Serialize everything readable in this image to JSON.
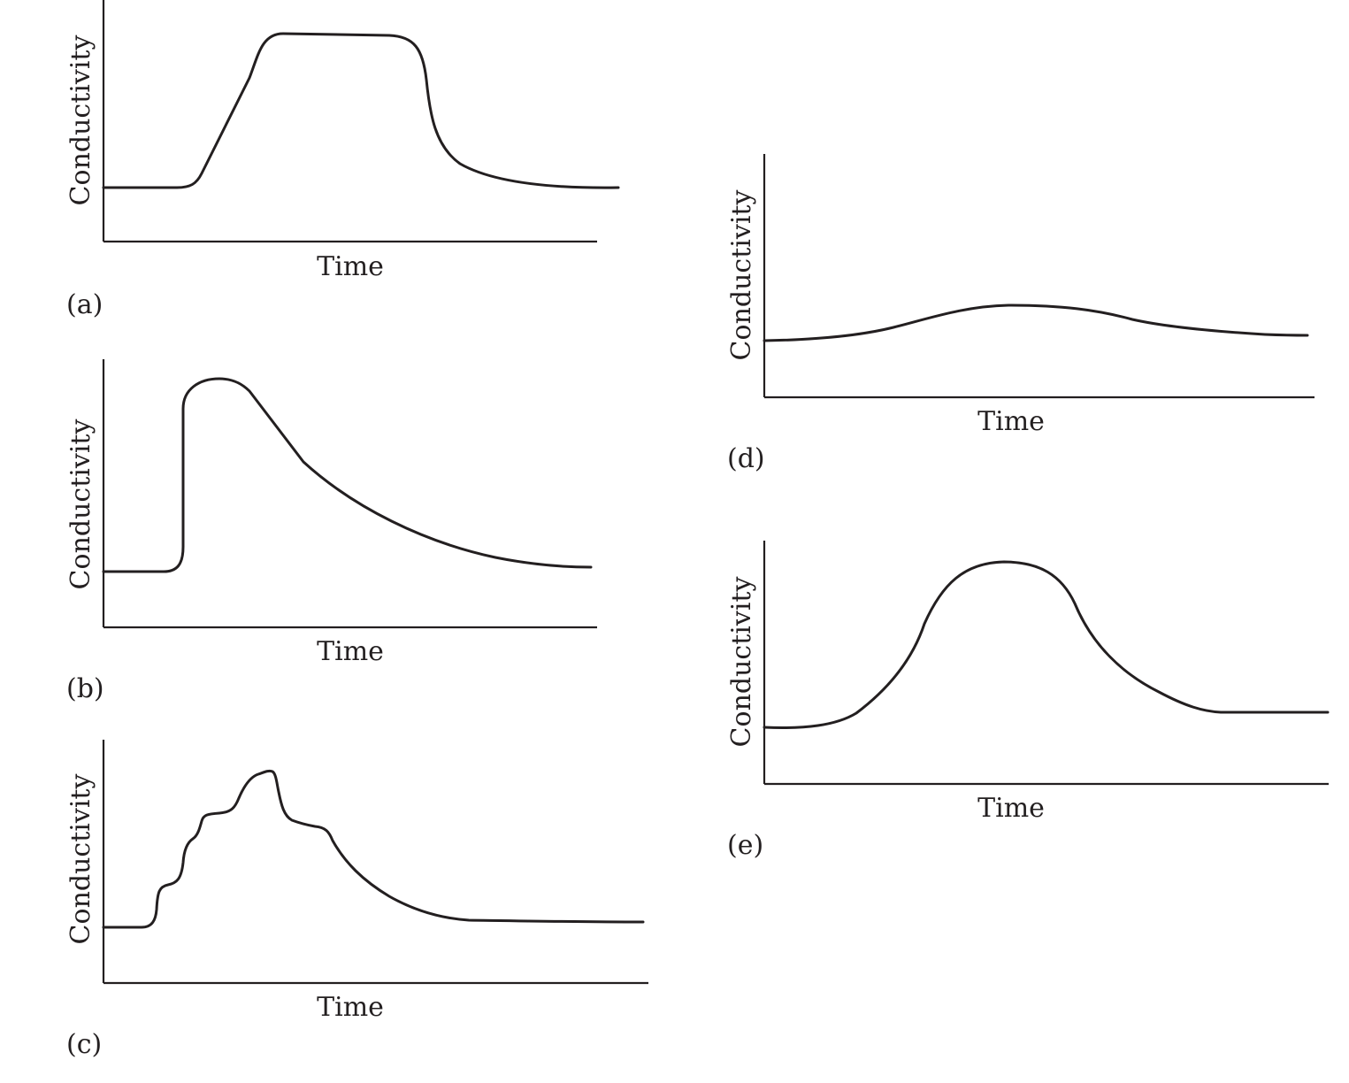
{
  "chart_data": [
    {
      "type": "line",
      "panel_label": "(a)",
      "xlabel": "Time",
      "ylabel": "Conductivity",
      "x": [
        0,
        7,
        12,
        15,
        20,
        26,
        30,
        35,
        38,
        42,
        48,
        52,
        55,
        58,
        61,
        63,
        65,
        67,
        70,
        73,
        77,
        82,
        88,
        94,
        100,
        105
      ],
      "y": [
        22,
        22,
        22,
        25,
        40,
        55,
        70,
        86,
        87,
        87,
        86.8,
        86.6,
        86.2,
        84,
        72,
        60,
        50,
        45,
        39,
        35,
        32,
        30,
        28.5,
        27.5,
        23,
        22
      ],
      "xlim": [
        0,
        100
      ],
      "ylim": [
        0,
        100
      ]
    },
    {
      "type": "line",
      "panel_label": "(b)",
      "xlabel": "Time",
      "ylabel": "Conductivity",
      "x": [
        0,
        12,
        15,
        16,
        16.5,
        18,
        22,
        24,
        28,
        35,
        42,
        48,
        55,
        63,
        72,
        82,
        92,
        100
      ],
      "y": [
        21,
        21,
        23,
        28,
        82,
        88,
        92,
        92,
        90,
        75,
        62,
        54,
        46,
        39,
        32,
        27,
        23,
        22.5
      ],
      "xlim": [
        0,
        100
      ],
      "ylim": [
        0,
        100
      ]
    },
    {
      "type": "line",
      "panel_label": "(c)",
      "xlabel": "Time",
      "ylabel": "Conductivity",
      "x": [
        0,
        8,
        10,
        11,
        13,
        15,
        16,
        17,
        18,
        20,
        21,
        23,
        25,
        27,
        29,
        31,
        32,
        33,
        34,
        36,
        38,
        40,
        42,
        44,
        46,
        48,
        51,
        55,
        60,
        66,
        72,
        80,
        90,
        100
      ],
      "y": [
        23,
        23,
        25,
        35,
        38,
        42,
        55,
        60,
        65,
        68,
        71,
        72,
        74,
        80,
        86,
        87,
        83,
        75,
        68,
        66,
        65.5,
        65,
        63,
        55,
        50,
        45,
        40,
        35,
        30,
        27,
        25,
        24.5,
        24,
        23.5
      ],
      "xlim": [
        0,
        100
      ],
      "ylim": [
        0,
        100
      ]
    },
    {
      "type": "line",
      "panel_label": "(d)",
      "xlabel": "Time",
      "ylabel": "Conductivity",
      "x": [
        0,
        10,
        20,
        28,
        35,
        40,
        45,
        52,
        58,
        65,
        70,
        80,
        90,
        100
      ],
      "y": [
        22,
        23,
        26,
        31,
        36,
        37.5,
        37.5,
        37,
        35.5,
        32,
        30,
        27.5,
        25.5,
        24.5
      ],
      "xlim": [
        0,
        100
      ],
      "ylim": [
        0,
        100
      ]
    },
    {
      "type": "line",
      "panel_label": "(e)",
      "xlabel": "Time",
      "ylabel": "Conductivity",
      "x": [
        0,
        6,
        12,
        16,
        20,
        25,
        30,
        33,
        38,
        42,
        46,
        50,
        54,
        58,
        62,
        66,
        72,
        80,
        90,
        100
      ],
      "y": [
        22,
        22,
        24,
        29,
        37,
        48,
        68,
        80,
        90,
        91.5,
        91,
        88,
        78,
        68,
        60,
        52,
        42,
        36,
        30,
        30
      ],
      "xlim": [
        0,
        100
      ],
      "ylim": [
        0,
        100
      ]
    }
  ]
}
